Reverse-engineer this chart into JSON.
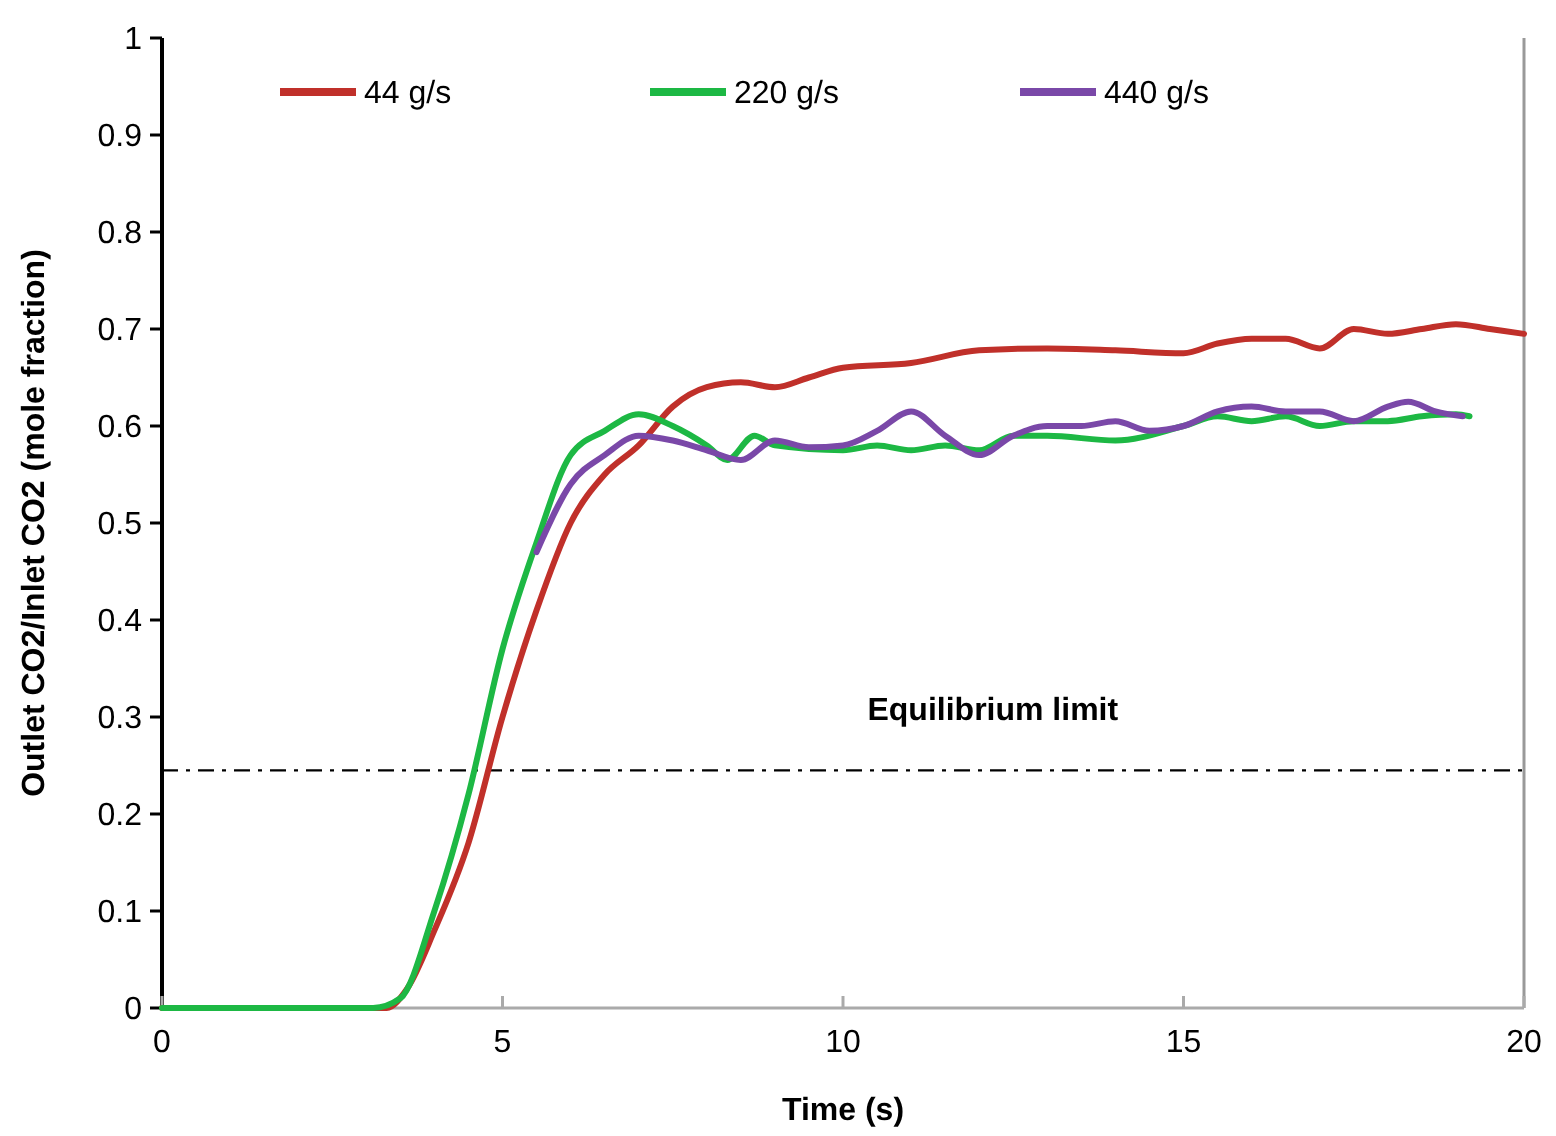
{
  "chart_data": {
    "type": "line",
    "xlabel": "Time (s)",
    "ylabel": "Outlet CO2/Inlet CO2 (mole fraction)",
    "xlim": [
      0,
      20
    ],
    "ylim": [
      0,
      1
    ],
    "xticks": [
      0,
      5,
      10,
      15,
      20
    ],
    "yticks": [
      0,
      0.1,
      0.2,
      0.3,
      0.4,
      0.5,
      0.6,
      0.7,
      0.8,
      0.9,
      1
    ],
    "grid": false,
    "legend": "top",
    "marker": "none",
    "line_style": "solid",
    "ref_lines": [
      {
        "axis": "y",
        "value": 0.245,
        "label": "Equilibrium limit",
        "color": "#000000",
        "line_style": "dashdot"
      }
    ],
    "series": [
      {
        "name": "44 g/s",
        "color": "#c0302a",
        "x": [
          0,
          3.3,
          3.6,
          4,
          4.5,
          5,
          5.5,
          6,
          6.5,
          7,
          7.5,
          8,
          8.5,
          9,
          9.5,
          10,
          11,
          12,
          13,
          14,
          15,
          15.5,
          16,
          16.5,
          17,
          17.5,
          18,
          18.5,
          19,
          19.5,
          20
        ],
        "values": [
          0,
          0,
          0.02,
          0.08,
          0.17,
          0.3,
          0.41,
          0.5,
          0.55,
          0.58,
          0.62,
          0.64,
          0.645,
          0.64,
          0.65,
          0.66,
          0.665,
          0.678,
          0.68,
          0.678,
          0.675,
          0.685,
          0.69,
          0.69,
          0.68,
          0.7,
          0.695,
          0.7,
          0.705,
          0.7,
          0.695
        ]
      },
      {
        "name": "220 g/s",
        "color": "#1db844",
        "x": [
          0,
          3.1,
          3.5,
          4,
          4.5,
          5,
          5.5,
          6,
          6.5,
          7,
          7.5,
          8,
          8.3,
          8.7,
          9,
          10,
          10.5,
          11,
          11.5,
          12,
          12.5,
          13,
          14,
          15,
          15.5,
          16,
          16.5,
          17,
          17.5,
          18,
          18.5,
          19,
          19.2
        ],
        "values": [
          0,
          0,
          0.01,
          0.1,
          0.22,
          0.37,
          0.48,
          0.57,
          0.595,
          0.612,
          0.6,
          0.58,
          0.565,
          0.59,
          0.58,
          0.575,
          0.58,
          0.575,
          0.58,
          0.575,
          0.59,
          0.59,
          0.585,
          0.6,
          0.61,
          0.605,
          0.61,
          0.6,
          0.605,
          0.605,
          0.61,
          0.612,
          0.61
        ]
      },
      {
        "name": "440 g/s",
        "color": "#7a48a8",
        "x": [
          5.5,
          6,
          6.5,
          7,
          7.5,
          8,
          8.5,
          9,
          9.5,
          10,
          10.5,
          11,
          11.5,
          12,
          12.5,
          13,
          13.5,
          14,
          14.5,
          15,
          15.5,
          16,
          16.5,
          17,
          17.5,
          18,
          18.3,
          18.7,
          19.1
        ],
        "values": [
          0.47,
          0.54,
          0.57,
          0.59,
          0.585,
          0.575,
          0.565,
          0.585,
          0.578,
          0.58,
          0.595,
          0.615,
          0.59,
          0.57,
          0.59,
          0.6,
          0.6,
          0.605,
          0.595,
          0.6,
          0.615,
          0.62,
          0.615,
          0.615,
          0.605,
          0.62,
          0.625,
          0.615,
          0.61
        ]
      }
    ]
  }
}
